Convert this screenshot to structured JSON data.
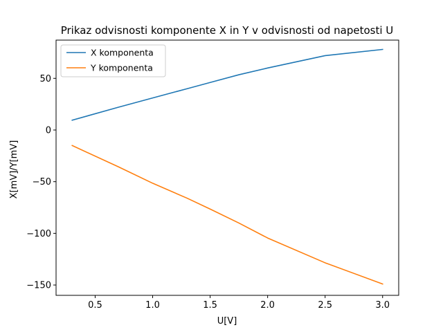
{
  "chart_data": {
    "type": "line",
    "title": "Prikaz odvisnosti komponente X in Y v odvisnosti od napetosti U",
    "xlabel": "U[V]",
    "ylabel": "X[mV]/Y[mV]",
    "xlim": [
      0.16,
      3.14
    ],
    "ylim": [
      -160,
      87
    ],
    "xticks": [
      0.5,
      1.0,
      1.5,
      2.0,
      2.5,
      3.0
    ],
    "xtick_labels": [
      "0.5",
      "1.0",
      "1.5",
      "2.0",
      "2.5",
      "3.0"
    ],
    "yticks": [
      -150,
      -100,
      -50,
      0,
      50
    ],
    "ytick_labels": [
      "−150",
      "−100",
      "−50",
      "0",
      "50"
    ],
    "grid": false,
    "legend_position": "upper-left",
    "series": [
      {
        "name": "X komponenta",
        "color": "#1f77b4",
        "x": [
          0.3,
          0.7,
          1.0,
          1.3,
          1.5,
          1.75,
          2.0,
          2.5,
          3.0
        ],
        "y": [
          9.5,
          22,
          31,
          40,
          46,
          53.5,
          60,
          72,
          78
        ]
      },
      {
        "name": "Y komponenta",
        "color": "#ff7f0e",
        "x": [
          0.3,
          0.7,
          1.0,
          1.3,
          1.5,
          1.75,
          2.0,
          2.5,
          3.0
        ],
        "y": [
          -15,
          -35.5,
          -51.5,
          -66,
          -76.5,
          -90,
          -104.5,
          -128.5,
          -149
        ]
      }
    ]
  }
}
